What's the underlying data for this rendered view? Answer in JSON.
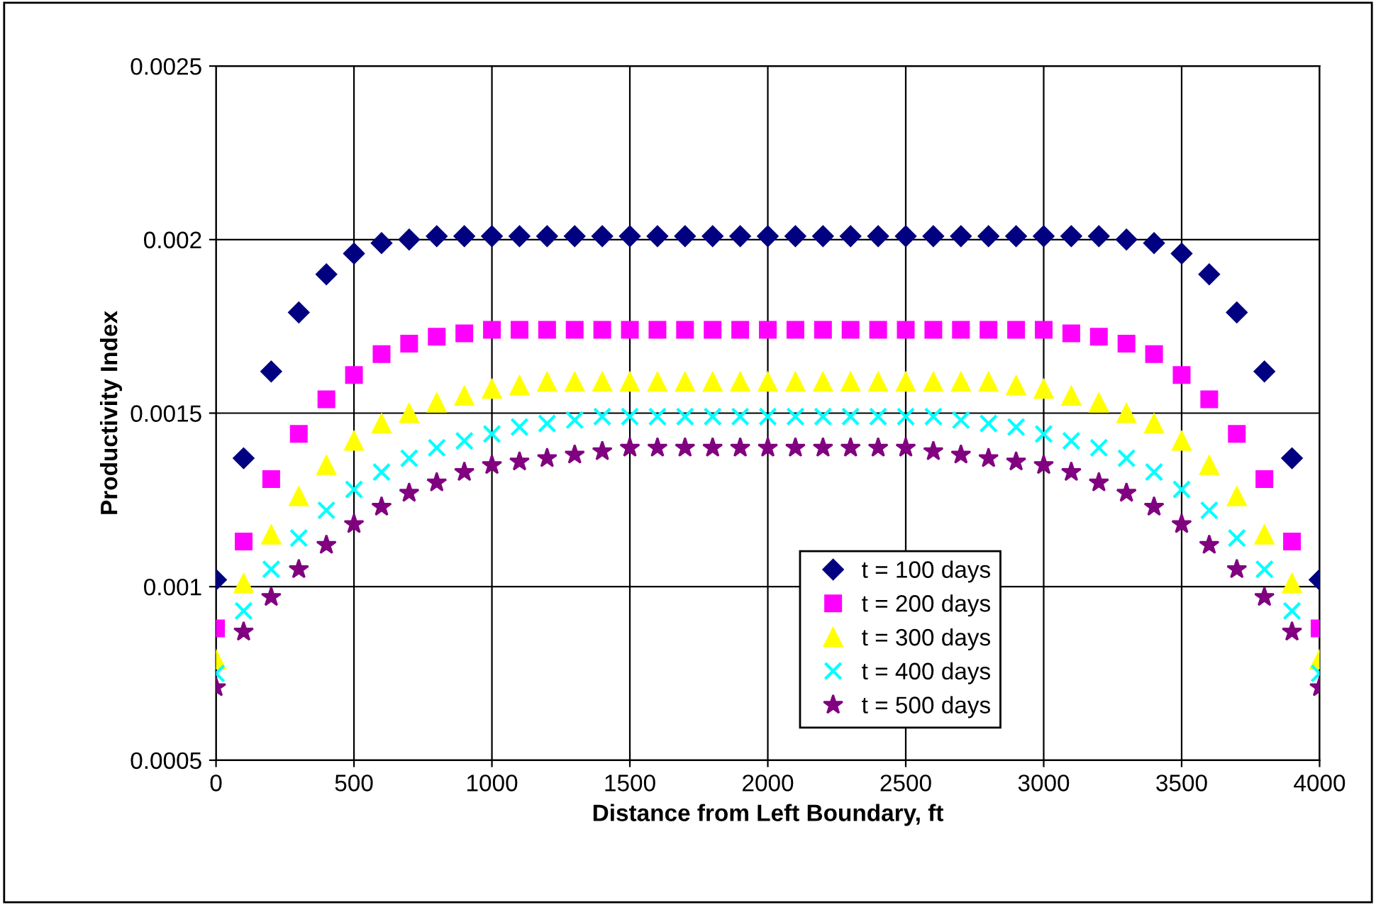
{
  "chart_data": {
    "type": "scatter",
    "xlabel": "Distance from Left Boundary, ft",
    "ylabel": "Productivity Index",
    "x": [
      0,
      100,
      200,
      300,
      400,
      500,
      600,
      700,
      800,
      900,
      1000,
      1100,
      1200,
      1300,
      1400,
      1500,
      1600,
      1700,
      1800,
      1900,
      2000,
      2100,
      2200,
      2300,
      2400,
      2500,
      2600,
      2700,
      2800,
      2900,
      3000,
      3100,
      3200,
      3300,
      3400,
      3500,
      3600,
      3700,
      3800,
      3900,
      4000
    ],
    "xlim": [
      0,
      4000
    ],
    "xticks": [
      0,
      500,
      1000,
      1500,
      2000,
      2500,
      3000,
      3500,
      4000
    ],
    "ylim": [
      0.0005,
      0.0025
    ],
    "yticks": [
      0.0005,
      0.001,
      0.0015,
      0.002,
      0.0025
    ],
    "grid": true,
    "legend": "bottom",
    "series": [
      {
        "name": "t = 100 days",
        "color": "#000080",
        "marker": "diamond",
        "values": [
          0.00102,
          0.00137,
          0.00162,
          0.00179,
          0.0019,
          0.00196,
          0.00199,
          0.002,
          0.00201,
          0.00201,
          0.00201,
          0.00201,
          0.00201,
          0.00201,
          0.00201,
          0.00201,
          0.00201,
          0.00201,
          0.00201,
          0.00201,
          0.00201,
          0.00201,
          0.00201,
          0.00201,
          0.00201,
          0.00201,
          0.00201,
          0.00201,
          0.00201,
          0.00201,
          0.00201,
          0.00201,
          0.00201,
          0.002,
          0.00199,
          0.00196,
          0.0019,
          0.00179,
          0.00162,
          0.00137,
          0.00102
        ]
      },
      {
        "name": "t = 200 days",
        "color": "#ff00ff",
        "marker": "square",
        "values": [
          0.00088,
          0.00113,
          0.00131,
          0.00144,
          0.00154,
          0.00161,
          0.00167,
          0.0017,
          0.00172,
          0.00173,
          0.00174,
          0.00174,
          0.00174,
          0.00174,
          0.00174,
          0.00174,
          0.00174,
          0.00174,
          0.00174,
          0.00174,
          0.00174,
          0.00174,
          0.00174,
          0.00174,
          0.00174,
          0.00174,
          0.00174,
          0.00174,
          0.00174,
          0.00174,
          0.00174,
          0.00173,
          0.00172,
          0.0017,
          0.00167,
          0.00161,
          0.00154,
          0.00144,
          0.00131,
          0.00113,
          0.00088
        ]
      },
      {
        "name": "t = 300 days",
        "color": "#ffff00",
        "marker": "triangle",
        "values": [
          0.00079,
          0.00101,
          0.00115,
          0.00126,
          0.00135,
          0.00142,
          0.00147,
          0.0015,
          0.00153,
          0.00155,
          0.00157,
          0.00158,
          0.00159,
          0.00159,
          0.00159,
          0.00159,
          0.00159,
          0.00159,
          0.00159,
          0.00159,
          0.00159,
          0.00159,
          0.00159,
          0.00159,
          0.00159,
          0.00159,
          0.00159,
          0.00159,
          0.00159,
          0.00158,
          0.00157,
          0.00155,
          0.00153,
          0.0015,
          0.00147,
          0.00142,
          0.00135,
          0.00126,
          0.00115,
          0.00101,
          0.00079
        ]
      },
      {
        "name": "t = 400 days",
        "color": "#00ffff",
        "marker": "cross",
        "values": [
          0.00075,
          0.00093,
          0.00105,
          0.00114,
          0.00122,
          0.00128,
          0.00133,
          0.00137,
          0.0014,
          0.00142,
          0.00144,
          0.00146,
          0.00147,
          0.00148,
          0.00149,
          0.00149,
          0.00149,
          0.00149,
          0.00149,
          0.00149,
          0.00149,
          0.00149,
          0.00149,
          0.00149,
          0.00149,
          0.00149,
          0.00149,
          0.00148,
          0.00147,
          0.00146,
          0.00144,
          0.00142,
          0.0014,
          0.00137,
          0.00133,
          0.00128,
          0.00122,
          0.00114,
          0.00105,
          0.00093,
          0.00075
        ]
      },
      {
        "name": "t = 500 days",
        "color": "#800080",
        "marker": "star",
        "values": [
          0.00071,
          0.00087,
          0.00097,
          0.00105,
          0.00112,
          0.00118,
          0.00123,
          0.00127,
          0.0013,
          0.00133,
          0.00135,
          0.00136,
          0.00137,
          0.00138,
          0.00139,
          0.0014,
          0.0014,
          0.0014,
          0.0014,
          0.0014,
          0.0014,
          0.0014,
          0.0014,
          0.0014,
          0.0014,
          0.0014,
          0.00139,
          0.00138,
          0.00137,
          0.00136,
          0.00135,
          0.00133,
          0.0013,
          0.00127,
          0.00123,
          0.00118,
          0.00112,
          0.00105,
          0.00097,
          0.00087,
          0.00071
        ]
      }
    ]
  }
}
